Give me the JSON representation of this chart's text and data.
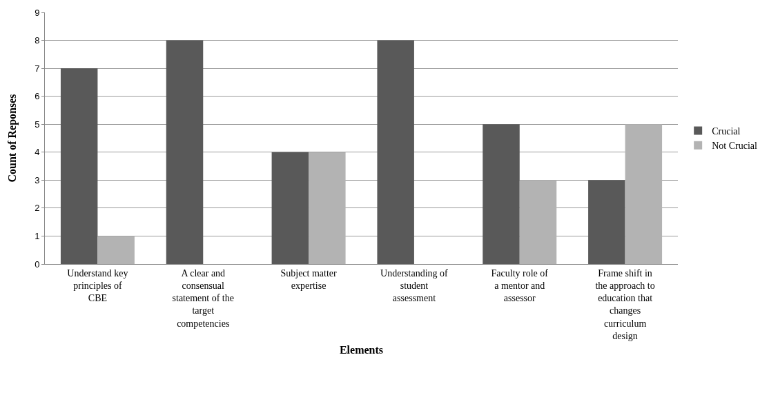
{
  "chart_data": {
    "type": "bar",
    "xlabel": "Elements",
    "ylabel": "Count of Reponses",
    "categories": [
      "Understand key principles of CBE",
      "A clear and consensual statement of the target competencies",
      "Subject matter expertise",
      "Understanding of student assessment",
      "Faculty role of a mentor and assessor",
      "Frame shift in the approach to education that changes curriculum design"
    ],
    "series": [
      {
        "name": "Crucial",
        "color": "#595959",
        "values": [
          7,
          8,
          4,
          8,
          5,
          3
        ]
      },
      {
        "name": "Not Crucial",
        "color": "#b3b3b3",
        "values": [
          1,
          0,
          4,
          0,
          3,
          5
        ]
      }
    ],
    "ylim": [
      0,
      9
    ],
    "yticks": [
      0,
      1,
      2,
      3,
      4,
      5,
      6,
      7,
      8,
      9
    ],
    "grid": "y",
    "legend": "right"
  }
}
